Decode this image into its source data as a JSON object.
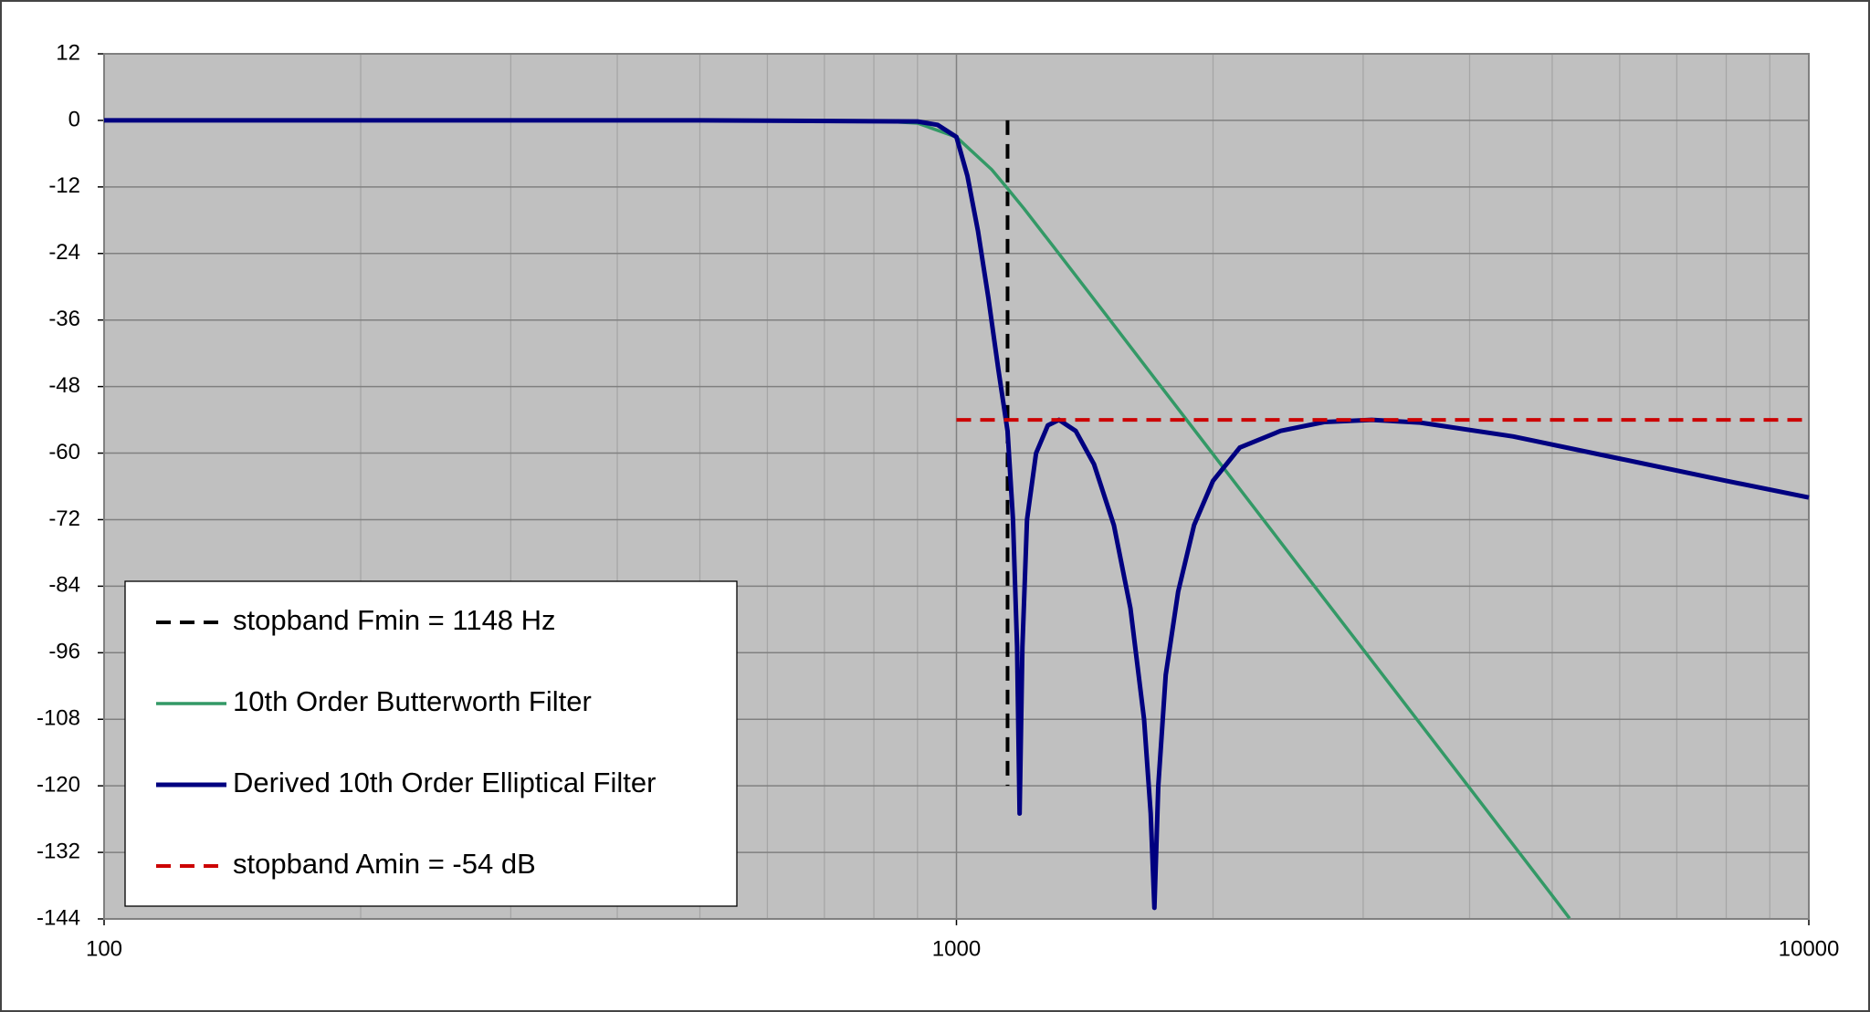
{
  "chart_data": {
    "type": "line",
    "xscale": "log",
    "xlim": [
      100,
      10000
    ],
    "ylim": [
      -144,
      12
    ],
    "xticks": [
      100,
      1000,
      10000
    ],
    "xminorticks": [
      200,
      300,
      400,
      500,
      600,
      700,
      800,
      900,
      2000,
      3000,
      4000,
      5000,
      6000,
      7000,
      8000,
      9000
    ],
    "yticks": [
      12,
      0,
      -12,
      -24,
      -36,
      -48,
      -60,
      -72,
      -84,
      -96,
      -108,
      -120,
      -132,
      -144
    ],
    "grid": true,
    "legend": "lower left",
    "series": [
      {
        "name": "stopband Fmin = 1148 Hz",
        "color": "#000000",
        "style": "dashed",
        "x": [
          1148,
          1148
        ],
        "values": [
          0,
          -120
        ]
      },
      {
        "name": "10th Order Butterworth Filter",
        "color": "#339966",
        "style": "solid",
        "x": [
          100,
          500,
          800,
          900,
          1000,
          1100,
          1148,
          1200,
          1300,
          1500,
          1700,
          2000,
          2500,
          3000,
          4000,
          5000,
          5240
        ],
        "values": [
          0,
          0,
          -0.05,
          -0.5,
          -3.01,
          -8.88,
          -12.3,
          -15.9,
          -22.8,
          -35.2,
          -46.1,
          -60.2,
          -79.6,
          -95.4,
          -120.4,
          -139.8,
          -143.9
        ]
      },
      {
        "name": "Derived 10th Order Elliptical Filter",
        "color": "#000080",
        "style": "solid",
        "x": [
          100,
          500,
          900,
          950,
          1000,
          1030,
          1060,
          1090,
          1120,
          1148,
          1165,
          1178,
          1186,
          1195,
          1210,
          1240,
          1280,
          1319,
          1380,
          1450,
          1530,
          1600,
          1660,
          1690,
          1707,
          1725,
          1760,
          1820,
          1900,
          2000,
          2150,
          2400,
          2700,
          3070,
          3500,
          4500,
          6000,
          8000,
          10000
        ],
        "values": [
          0,
          0,
          -0.2,
          -0.8,
          -3,
          -10,
          -20,
          -32,
          -45,
          -56,
          -72,
          -95,
          -125,
          -95,
          -72,
          -60,
          -55,
          -54,
          -56,
          -62,
          -73,
          -88,
          -108,
          -125,
          -142,
          -120,
          -100,
          -85,
          -73,
          -65,
          -59,
          -56,
          -54.4,
          -54,
          -54.5,
          -57,
          -61,
          -65,
          -68
        ]
      },
      {
        "name": "stopband Amin = -54 dB",
        "color": "#cc0000",
        "style": "dashed",
        "x": [
          1000,
          10000
        ],
        "values": [
          -54,
          -54
        ]
      }
    ]
  }
}
